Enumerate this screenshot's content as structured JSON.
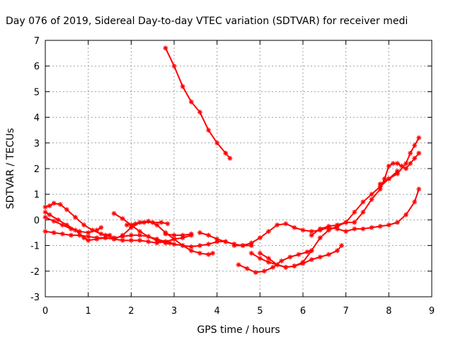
{
  "chart_data": {
    "type": "scatter",
    "title": "Day 076 of 2019, Sidereal Day-to-day VTEC variation (SDTVAR) for receiver medi",
    "xlabel": "GPS time / hours",
    "ylabel": "SDTVAR / TECUs",
    "xlim": [
      0,
      9
    ],
    "ylim": [
      -3,
      7
    ],
    "x_ticks": [
      "0",
      "1",
      "2",
      "3",
      "4",
      "5",
      "6",
      "7",
      "8",
      "9"
    ],
    "y_ticks": [
      "-3",
      "-2",
      "-1",
      "0",
      "1",
      "2",
      "3",
      "4",
      "5",
      "6",
      "7"
    ],
    "grid": true,
    "marker": "star",
    "color": "#ff0000",
    "series": [
      {
        "x": [
          2.8,
          3.0,
          3.2,
          3.4,
          3.6,
          3.8,
          4.0,
          4.2,
          4.3
        ],
        "y": [
          6.7,
          6.0,
          5.2,
          4.6,
          4.2,
          3.5,
          3.0,
          2.6,
          2.4
        ]
      },
      {
        "x": [
          0.0,
          0.1,
          0.2,
          0.35,
          0.5,
          0.7,
          0.9,
          1.1,
          1.3,
          1.5
        ],
        "y": [
          0.5,
          0.55,
          0.65,
          0.6,
          0.4,
          0.1,
          -0.2,
          -0.4,
          -0.55,
          -0.6
        ]
      },
      {
        "x": [
          0.0,
          0.1,
          0.3,
          0.5,
          0.7,
          0.9,
          1.0,
          1.2,
          1.4,
          1.6,
          1.8,
          2.0,
          2.2,
          2.4,
          2.6,
          2.8,
          3.0,
          3.2,
          3.4,
          3.6,
          3.8,
          3.9
        ],
        "y": [
          0.3,
          0.2,
          0.0,
          -0.2,
          -0.4,
          -0.7,
          -0.8,
          -0.75,
          -0.7,
          -0.75,
          -0.6,
          -0.3,
          -0.1,
          -0.05,
          -0.2,
          -0.5,
          -0.75,
          -1.0,
          -1.2,
          -1.3,
          -1.35,
          -1.3
        ]
      },
      {
        "x": [
          0.0,
          0.2,
          0.4,
          0.6,
          0.8,
          1.0,
          1.2,
          1.4,
          1.6,
          1.8,
          2.0,
          2.2,
          2.4,
          2.6,
          2.8,
          3.0,
          3.2,
          3.4
        ],
        "y": [
          -0.45,
          -0.5,
          -0.55,
          -0.6,
          -0.6,
          -0.65,
          -0.7,
          -0.7,
          -0.75,
          -0.8,
          -0.8,
          -0.8,
          -0.85,
          -0.9,
          -0.85,
          -0.75,
          -0.7,
          -0.6
        ]
      },
      {
        "x": [
          0.0,
          0.2,
          0.4,
          0.6,
          0.8,
          1.0,
          1.2,
          1.3
        ],
        "y": [
          0.1,
          -0.05,
          -0.2,
          -0.35,
          -0.45,
          -0.5,
          -0.4,
          -0.3
        ]
      },
      {
        "x": [
          1.6,
          1.8,
          2.0,
          2.2,
          2.4,
          2.6,
          2.8,
          3.0,
          3.2,
          3.4,
          3.6,
          3.8,
          4.0,
          4.2,
          4.4,
          4.6,
          4.8
        ],
        "y": [
          0.25,
          0.05,
          -0.2,
          -0.45,
          -0.65,
          -0.8,
          -0.9,
          -0.95,
          -1.0,
          -1.05,
          -1.0,
          -0.95,
          -0.85,
          -0.85,
          -0.95,
          -1.0,
          -1.0
        ]
      },
      {
        "x": [
          1.4,
          1.6,
          1.8,
          2.0,
          2.2,
          2.4,
          2.6,
          2.8,
          2.9
        ],
        "y": [
          -0.6,
          -0.7,
          -0.65,
          -0.6,
          -0.6,
          -0.65,
          -0.75,
          -0.85,
          -0.9
        ]
      },
      {
        "x": [
          1.9,
          2.1,
          2.3,
          2.5,
          2.7,
          2.85
        ],
        "y": [
          -0.2,
          -0.15,
          -0.1,
          -0.1,
          -0.1,
          -0.15
        ]
      },
      {
        "x": [
          2.8,
          3.0,
          3.2,
          3.4
        ],
        "y": [
          -0.55,
          -0.6,
          -0.6,
          -0.55
        ]
      },
      {
        "x": [
          3.6,
          3.8,
          4.0,
          4.2,
          4.4
        ],
        "y": [
          -0.5,
          -0.6,
          -0.75,
          -0.85,
          -0.95
        ]
      },
      {
        "x": [
          4.4,
          4.6,
          4.8,
          5.0,
          5.2,
          5.4,
          5.6,
          5.8,
          6.0,
          6.2,
          6.4,
          6.6,
          6.8,
          7.0,
          7.2,
          7.4,
          7.6,
          7.8,
          8.0,
          8.2,
          8.4,
          8.6,
          8.7
        ],
        "y": [
          -1.0,
          -1.0,
          -0.9,
          -0.7,
          -0.45,
          -0.2,
          -0.15,
          -0.3,
          -0.4,
          -0.45,
          -0.4,
          -0.3,
          -0.35,
          -0.45,
          -0.35,
          -0.35,
          -0.3,
          -0.25,
          -0.2,
          -0.1,
          0.2,
          0.7,
          1.2
        ]
      },
      {
        "x": [
          4.5,
          4.7,
          4.9,
          5.1,
          5.3,
          5.5,
          5.7,
          5.9,
          6.1,
          6.2
        ],
        "y": [
          -1.75,
          -1.9,
          -2.05,
          -2.0,
          -1.85,
          -1.6,
          -1.45,
          -1.35,
          -1.25,
          -1.2
        ]
      },
      {
        "x": [
          4.8,
          5.0,
          5.2,
          5.4,
          5.6,
          5.8,
          6.0,
          6.2,
          6.4,
          6.6,
          6.8,
          6.9
        ],
        "y": [
          -1.3,
          -1.5,
          -1.65,
          -1.75,
          -1.85,
          -1.8,
          -1.7,
          -1.55,
          -1.45,
          -1.35,
          -1.2,
          -1.0
        ]
      },
      {
        "x": [
          5.0,
          5.2,
          5.4,
          5.6,
          5.8,
          6.0,
          6.2,
          6.4,
          6.6,
          6.8,
          7.0,
          7.2,
          7.4,
          7.6,
          7.8,
          8.0,
          8.2
        ],
        "y": [
          -1.3,
          -1.5,
          -1.75,
          -1.85,
          -1.8,
          -1.65,
          -1.2,
          -0.7,
          -0.4,
          -0.25,
          -0.1,
          0.3,
          0.7,
          1.0,
          1.3,
          1.6,
          1.9
        ]
      },
      {
        "x": [
          6.2,
          6.4,
          6.6,
          6.8,
          7.0,
          7.2,
          7.4,
          7.6,
          7.8,
          7.9,
          8.0,
          8.1,
          8.2,
          8.3,
          8.4,
          8.5,
          8.6,
          8.7
        ],
        "y": [
          -0.6,
          -0.35,
          -0.25,
          -0.2,
          -0.1,
          -0.1,
          0.3,
          0.8,
          1.2,
          1.6,
          2.1,
          2.2,
          2.2,
          2.1,
          2.0,
          2.2,
          2.4,
          2.6
        ]
      },
      {
        "x": [
          7.8,
          8.0,
          8.2,
          8.4,
          8.5,
          8.6,
          8.7
        ],
        "y": [
          1.4,
          1.6,
          1.8,
          2.2,
          2.6,
          2.9,
          3.2
        ]
      }
    ]
  }
}
